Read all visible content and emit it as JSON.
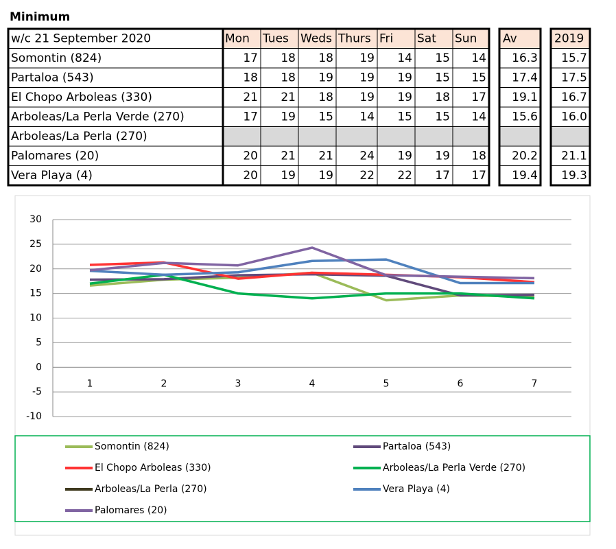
{
  "title": "Minimum",
  "table": {
    "header": {
      "label": "w/c 21 September 2020",
      "days": [
        "Mon",
        "Tues",
        "Weds",
        "Thurs",
        "Fri",
        "Sat",
        "Sun"
      ],
      "av": "Av",
      "y2019": "2019"
    },
    "rows": [
      {
        "name": "Somontin (824)",
        "values": [
          17,
          18,
          18,
          19,
          14,
          15,
          14
        ],
        "av": "16.3",
        "y2019": "15.7"
      },
      {
        "name": "Partaloa (543)",
        "values": [
          18,
          18,
          19,
          19,
          19,
          15,
          15
        ],
        "av": "17.4",
        "y2019": "17.5"
      },
      {
        "name": "El Chopo Arboleas (330)",
        "values": [
          21,
          21,
          18,
          19,
          19,
          18,
          17
        ],
        "av": "19.1",
        "y2019": "16.7"
      },
      {
        "name": "Arboleas/La Perla Verde (270)",
        "values": [
          17,
          19,
          15,
          14,
          15,
          15,
          14
        ],
        "av": "15.6",
        "y2019": "16.0"
      },
      {
        "name": "Arboleas/La Perla (270)",
        "values": [
          null,
          null,
          null,
          null,
          null,
          null,
          null
        ],
        "av": null,
        "y2019": null
      },
      {
        "name": "Palomares (20)",
        "values": [
          20,
          21,
          21,
          24,
          19,
          19,
          18
        ],
        "av": "20.2",
        "y2019": "21.1"
      },
      {
        "name": "Vera Playa (4)",
        "values": [
          20,
          19,
          19,
          22,
          22,
          17,
          17
        ],
        "av": "19.4",
        "y2019": "19.3"
      }
    ]
  },
  "chart_data": {
    "type": "line",
    "categories": [
      "1",
      "2",
      "3",
      "4",
      "5",
      "6",
      "7"
    ],
    "ylim": [
      -10,
      30
    ],
    "yticks": [
      -10,
      -5,
      0,
      5,
      10,
      15,
      20,
      25,
      30
    ],
    "grid": true,
    "series": [
      {
        "name": "Somontin (824)",
        "color": "#9bbb59",
        "values": [
          16.6,
          17.8,
          18.2,
          19.2,
          13.6,
          14.6,
          14.4
        ]
      },
      {
        "name": "Partaloa (543)",
        "color": "#604a7b",
        "values": [
          17.8,
          17.9,
          18.7,
          18.9,
          18.6,
          14.6,
          14.7
        ]
      },
      {
        "name": "El Chopo Arboleas (330)",
        "color": "#ff3333",
        "values": [
          20.8,
          21.3,
          18.0,
          19.2,
          18.8,
          18.3,
          17.3
        ]
      },
      {
        "name": "Arboleas/La Perla Verde (270)",
        "color": "#00b050",
        "values": [
          17.0,
          18.8,
          15.0,
          14.0,
          15.0,
          15.0,
          14.0
        ]
      },
      {
        "name": "Arboleas/La Perla (270)",
        "color": "#3f3a1f",
        "values": [
          null,
          null,
          null,
          null,
          null,
          null,
          null
        ]
      },
      {
        "name": "Vera Playa (4)",
        "color": "#4f81bd",
        "values": [
          19.6,
          18.8,
          19.3,
          21.6,
          21.9,
          17.1,
          17.1
        ]
      },
      {
        "name": "Palomares (20)",
        "color": "#8064a2",
        "values": [
          19.7,
          21.2,
          20.7,
          24.3,
          18.7,
          18.4,
          18.1
        ]
      }
    ]
  }
}
